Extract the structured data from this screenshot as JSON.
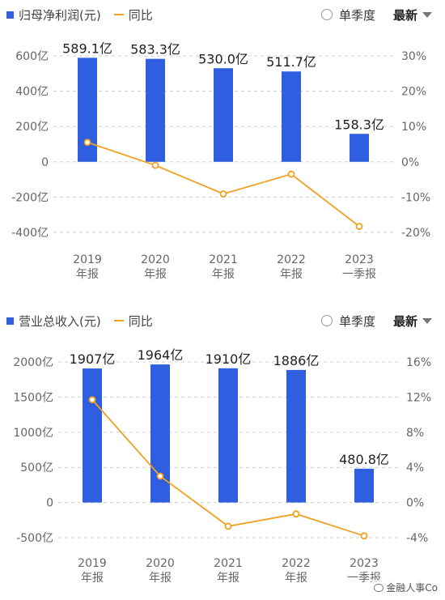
{
  "chart_data": [
    {
      "type": "bar",
      "legend": {
        "bar_label": "归母净利润(元)",
        "line_label": "同比"
      },
      "controls": {
        "toggle_label": "单季度",
        "sort_label": "最新"
      },
      "categories": [
        {
          "year": "2019",
          "period": "年报"
        },
        {
          "year": "2020",
          "period": "年报"
        },
        {
          "year": "2021",
          "period": "年报"
        },
        {
          "year": "2022",
          "period": "年报"
        },
        {
          "year": "2023",
          "period": "一季报"
        }
      ],
      "series": [
        {
          "axis": "left",
          "values": [
            589.1,
            583.3,
            530.0,
            511.7,
            158.3
          ],
          "labels": [
            "589.1亿",
            "583.3亿",
            "530.0亿",
            "511.7亿",
            "158.3亿"
          ]
        },
        {
          "axis": "right",
          "values": [
            5.5,
            -1.0,
            -9.1,
            -3.5,
            -18.3
          ]
        }
      ],
      "left_axis": {
        "ylim": [
          -400,
          600
        ],
        "ticks": [
          600,
          400,
          200,
          0,
          -200,
          -400
        ],
        "tick_labels": [
          "600亿",
          "400亿",
          "200亿",
          "0",
          "-200亿",
          "-400亿"
        ]
      },
      "right_axis": {
        "ylim": [
          -20,
          30
        ],
        "ticks": [
          30,
          20,
          10,
          0,
          -10,
          -20
        ],
        "tick_labels": [
          "30%",
          "20%",
          "10%",
          "0%",
          "-10%",
          "-20%"
        ]
      },
      "colors": {
        "bar": "#2f5fe0",
        "line": "#f0a020"
      }
    },
    {
      "type": "bar",
      "legend": {
        "bar_label": "营业总收入(元)",
        "line_label": "同比"
      },
      "controls": {
        "toggle_label": "单季度",
        "sort_label": "最新"
      },
      "categories": [
        {
          "year": "2019",
          "period": "年报"
        },
        {
          "year": "2020",
          "period": "年报"
        },
        {
          "year": "2021",
          "period": "年报"
        },
        {
          "year": "2022",
          "period": "年报"
        },
        {
          "year": "2023",
          "period": "一季报"
        }
      ],
      "series": [
        {
          "axis": "left",
          "values": [
            1907,
            1964,
            1910,
            1886,
            480.8
          ],
          "labels": [
            "1907亿",
            "1964亿",
            "1910亿",
            "1886亿",
            "480.8亿"
          ]
        },
        {
          "axis": "right",
          "values": [
            11.7,
            3.0,
            -2.7,
            -1.3,
            -3.8
          ]
        }
      ],
      "left_axis": {
        "ylim": [
          -500,
          2000
        ],
        "ticks": [
          2000,
          1500,
          1000,
          500,
          0,
          -500
        ],
        "tick_labels": [
          "2000亿",
          "1500亿",
          "1000亿",
          "500亿",
          "0",
          "-500亿"
        ]
      },
      "right_axis": {
        "ylim": [
          -4,
          16
        ],
        "ticks": [
          16,
          12,
          8,
          4,
          0,
          -4
        ],
        "tick_labels": [
          "16%",
          "12%",
          "8%",
          "4%",
          "0%",
          "-4%"
        ]
      },
      "colors": {
        "bar": "#2f5fe0",
        "line": "#f0a020"
      }
    }
  ],
  "watermark": "金融人事Co"
}
